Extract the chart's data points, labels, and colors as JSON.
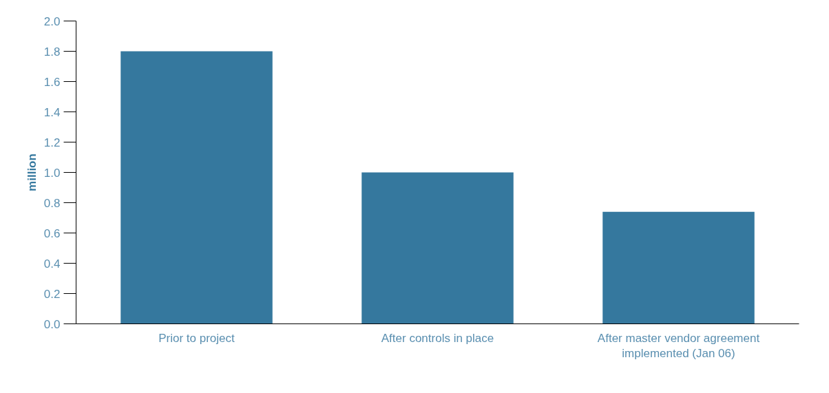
{
  "chart_data": {
    "type": "bar",
    "ylabel": "million",
    "categories": [
      "Prior to project",
      "After controls in place",
      "After master vendor agreement implemented (Jan 06)"
    ],
    "values": [
      1.8,
      1.0,
      0.74
    ],
    "color": "#35789e",
    "ylim": [
      0,
      2.0
    ],
    "yticks": [
      {
        "value": 0,
        "label": "0.0"
      },
      {
        "value": 0.2,
        "label": "0.2"
      },
      {
        "value": 0.4,
        "label": "0.4"
      },
      {
        "value": 0.6,
        "label": "0.6"
      },
      {
        "value": 0.8,
        "label": "0.8"
      },
      {
        "value": 1.0,
        "label": "1.0"
      },
      {
        "value": 1.2,
        "label": "1.2"
      },
      {
        "value": 1.4,
        "label": "1.4"
      },
      {
        "value": 1.6,
        "label": "1.6"
      },
      {
        "value": 1.8,
        "label": "1.8"
      },
      {
        "value": 2.0,
        "label": "2.0"
      }
    ],
    "grid": false
  }
}
